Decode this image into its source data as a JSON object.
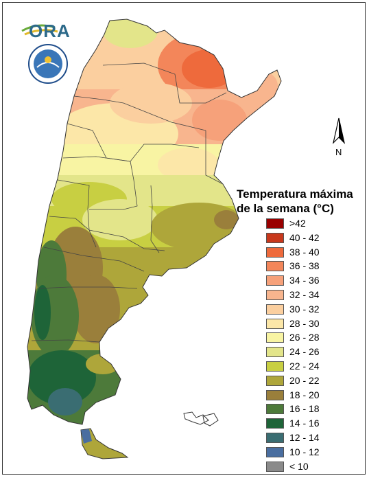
{
  "logo": {
    "text": "ORA",
    "seal_text": "SERVICIO METEOROLOGICO NACIONAL ARGENTINA"
  },
  "north_arrow": {
    "label": "N"
  },
  "legend": {
    "title_line1": "Temperatura máxima",
    "title_line2": "de la semana (°C)",
    "items": [
      {
        "label": ">42",
        "color": "#990000"
      },
      {
        "label": "40 - 42",
        "color": "#c8381c"
      },
      {
        "label": "38 - 40",
        "color": "#ee6a3c"
      },
      {
        "label": "36 - 38",
        "color": "#f3865a"
      },
      {
        "label": "34 - 36",
        "color": "#f6a17a"
      },
      {
        "label": "32 - 34",
        "color": "#f8b58e"
      },
      {
        "label": "30 - 32",
        "color": "#fbcf9f"
      },
      {
        "label": "28 - 30",
        "color": "#fce7a8"
      },
      {
        "label": "26 - 28",
        "color": "#f8f4a3"
      },
      {
        "label": "24 - 26",
        "color": "#e3e58a"
      },
      {
        "label": "22 - 24",
        "color": "#c8cf42"
      },
      {
        "label": "20 - 22",
        "color": "#aea63a"
      },
      {
        "label": "18 - 20",
        "color": "#9a7f3b"
      },
      {
        "label": "16 - 18",
        "color": "#4d7a3a"
      },
      {
        "label": "14 - 16",
        "color": "#1e6438"
      },
      {
        "label": "12 - 14",
        "color": "#3a6d72"
      },
      {
        "label": "10 - 12",
        "color": "#4a6ea0"
      },
      {
        "label": "< 10",
        "color": "#8a8a8a"
      }
    ]
  }
}
